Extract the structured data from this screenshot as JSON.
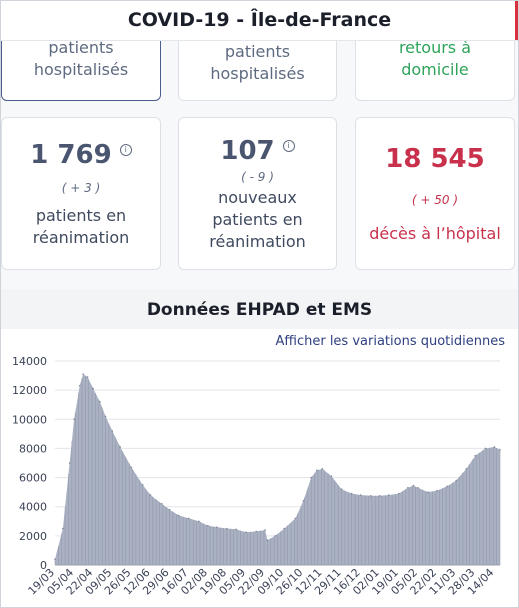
{
  "header": {
    "title": "COVID-19 - Île-de-France"
  },
  "top_cards": [
    {
      "lines": [
        "patients",
        "hospitalisés"
      ]
    },
    {
      "lines": [
        "patients",
        "hospitalisés"
      ]
    },
    {
      "lines": [
        "retours à",
        "domicile"
      ]
    }
  ],
  "stats": [
    {
      "value": "1 769",
      "delta": "( + 3 )",
      "label_lines": [
        "patients en",
        "réanimation"
      ],
      "info_icon": "info-icon"
    },
    {
      "value": "107",
      "delta": "( - 9 )",
      "label_lines": [
        "nouveaux",
        "patients en",
        "réanimation"
      ],
      "info_icon": "info-icon"
    },
    {
      "value": "18 545",
      "delta": "( + 50 )",
      "label_lines": [
        "décès à l’hôpital"
      ]
    }
  ],
  "section": {
    "title": "Données EHPAD et EMS",
    "toggle_label": "Afficher les variations quotidiennes"
  },
  "colors": {
    "accent_red": "#c8304c",
    "green": "#2ea35a",
    "area_fill": "#a9b1c2",
    "bar_stroke": "#8b93a5"
  },
  "chart_data": {
    "type": "area",
    "ylim": [
      0,
      14000
    ],
    "yticks": [
      0,
      2000,
      4000,
      6000,
      8000,
      10000,
      12000,
      14000
    ],
    "xticks": [
      "19/03",
      "05/04",
      "22/04",
      "09/05",
      "26/05",
      "12/06",
      "29/06",
      "16/07",
      "02/08",
      "19/08",
      "05/09",
      "22/09",
      "09/10",
      "26/10",
      "12/11",
      "29/11",
      "16/12",
      "02/01",
      "19/01",
      "05/02",
      "22/02",
      "11/03",
      "28/03",
      "14/04"
    ],
    "points": [
      [
        "19/03",
        400
      ],
      [
        "26/03",
        2500
      ],
      [
        "01/04",
        7000
      ],
      [
        "05/04",
        10000
      ],
      [
        "10/04",
        12300
      ],
      [
        "13/04",
        13100
      ],
      [
        "17/04",
        12900
      ],
      [
        "22/04",
        12100
      ],
      [
        "28/04",
        11200
      ],
      [
        "03/05",
        10200
      ],
      [
        "09/05",
        9200
      ],
      [
        "16/05",
        8100
      ],
      [
        "26/05",
        6700
      ],
      [
        "05/06",
        5500
      ],
      [
        "12/06",
        4800
      ],
      [
        "22/06",
        4200
      ],
      [
        "29/06",
        3800
      ],
      [
        "07/07",
        3400
      ],
      [
        "16/07",
        3200
      ],
      [
        "25/07",
        3000
      ],
      [
        "02/08",
        2700
      ],
      [
        "10/08",
        2600
      ],
      [
        "19/08",
        2500
      ],
      [
        "27/08",
        2450
      ],
      [
        "05/09",
        2250
      ],
      [
        "14/09",
        2300
      ],
      [
        "22/09",
        2400
      ],
      [
        "24/09",
        1700
      ],
      [
        "01/10",
        2000
      ],
      [
        "09/10",
        2500
      ],
      [
        "19/10",
        3200
      ],
      [
        "26/10",
        4400
      ],
      [
        "02/11",
        6000
      ],
      [
        "07/11",
        6500
      ],
      [
        "12/11",
        6600
      ],
      [
        "20/11",
        6100
      ],
      [
        "29/11",
        5200
      ],
      [
        "08/12",
        4900
      ],
      [
        "16/12",
        4800
      ],
      [
        "25/12",
        4750
      ],
      [
        "02/01",
        4750
      ],
      [
        "10/01",
        4800
      ],
      [
        "19/01",
        4900
      ],
      [
        "27/01",
        5300
      ],
      [
        "01/02",
        5450
      ],
      [
        "05/02",
        5300
      ],
      [
        "14/02",
        5000
      ],
      [
        "22/02",
        5100
      ],
      [
        "03/03",
        5400
      ],
      [
        "11/03",
        5800
      ],
      [
        "20/03",
        6600
      ],
      [
        "28/03",
        7500
      ],
      [
        "06/04",
        8000
      ],
      [
        "14/04",
        8100
      ],
      [
        "19/04",
        7900
      ]
    ]
  }
}
